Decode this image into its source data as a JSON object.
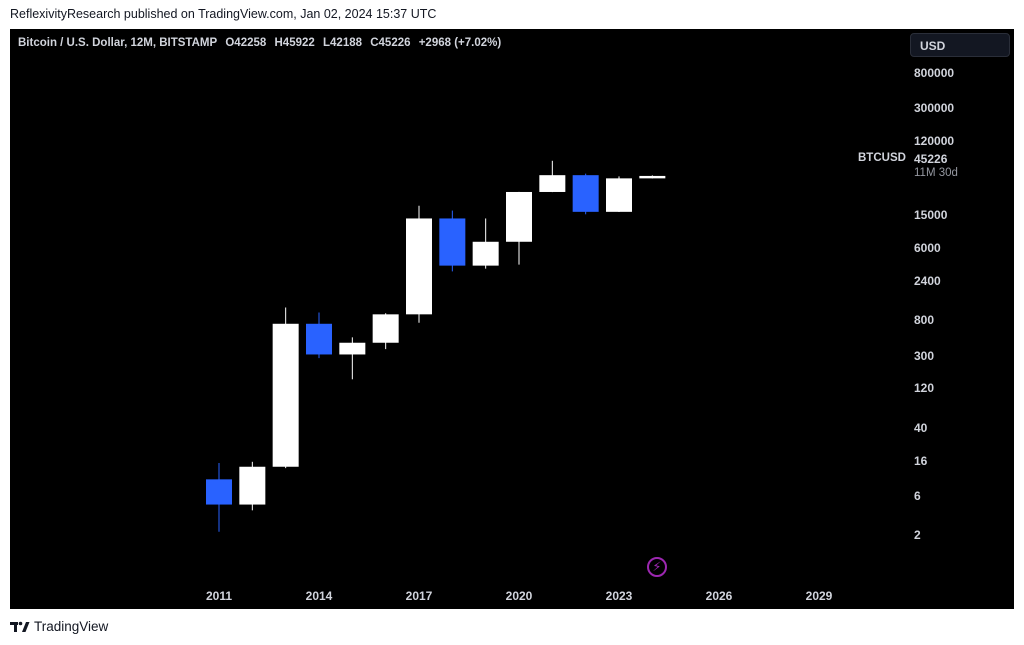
{
  "publisher_line": "ReflexivityResearch published on TradingView.com, Jan 02, 2024 15:37 UTC",
  "legend": {
    "title": "Bitcoin / U.S. Dollar, 12M, BITSTAMP",
    "open": "O42258",
    "high": "H45922",
    "low": "L42188",
    "close": "C45226",
    "change": "+2968 (+7.02%)"
  },
  "currency_button": "USD",
  "price_axis": {
    "symbol": "BTCUSD",
    "last_price": "45226",
    "countdown": "11M 30d",
    "ticks": [
      "2",
      "6",
      "16",
      "40",
      "120",
      "300",
      "800",
      "2400",
      "6000",
      "15000",
      "120000",
      "300000",
      "800000"
    ]
  },
  "footer_brand": "TradingView",
  "colors": {
    "up": "#ffffff",
    "down": "#2962ff",
    "background": "#000000",
    "text": "#d1d4dc",
    "bolt": "#9c27b0"
  },
  "icons": {
    "bolt": "lightning-bolt-icon",
    "logo": "tradingview-logo-icon"
  },
  "chart_data": {
    "type": "candlestick",
    "scale": "log",
    "ylim": [
      0.8,
      1000000
    ],
    "xlim": [
      2010.1,
      2030.2
    ],
    "x_ticks": [
      "2011",
      "2014",
      "2017",
      "2020",
      "2023",
      "2026",
      "2029"
    ],
    "candles": [
      {
        "year": 2011,
        "open": 9.5,
        "high": 15,
        "low": 2.2,
        "close": 4.7
      },
      {
        "year": 2012,
        "open": 4.7,
        "high": 15.5,
        "low": 4.0,
        "close": 13.5
      },
      {
        "year": 2013,
        "open": 13.5,
        "high": 1150,
        "low": 13.0,
        "close": 730
      },
      {
        "year": 2014,
        "open": 730,
        "high": 1000,
        "low": 280,
        "close": 310
      },
      {
        "year": 2015,
        "open": 310,
        "high": 500,
        "low": 155,
        "close": 430
      },
      {
        "year": 2016,
        "open": 430,
        "high": 980,
        "low": 360,
        "close": 950
      },
      {
        "year": 2017,
        "open": 950,
        "high": 19700,
        "low": 750,
        "close": 13800
      },
      {
        "year": 2018,
        "open": 13800,
        "high": 17200,
        "low": 3150,
        "close": 3700
      },
      {
        "year": 2019,
        "open": 3700,
        "high": 13800,
        "low": 3400,
        "close": 7200
      },
      {
        "year": 2020,
        "open": 7200,
        "high": 29000,
        "low": 3800,
        "close": 28900
      },
      {
        "year": 2021,
        "open": 28900,
        "high": 69000,
        "low": 28800,
        "close": 46200
      },
      {
        "year": 2022,
        "open": 46200,
        "high": 48200,
        "low": 15500,
        "close": 16600
      },
      {
        "year": 2023,
        "open": 16600,
        "high": 44700,
        "low": 16500,
        "close": 42258
      },
      {
        "year": 2024,
        "open": 42258,
        "high": 45922,
        "low": 42188,
        "close": 45226
      }
    ]
  }
}
